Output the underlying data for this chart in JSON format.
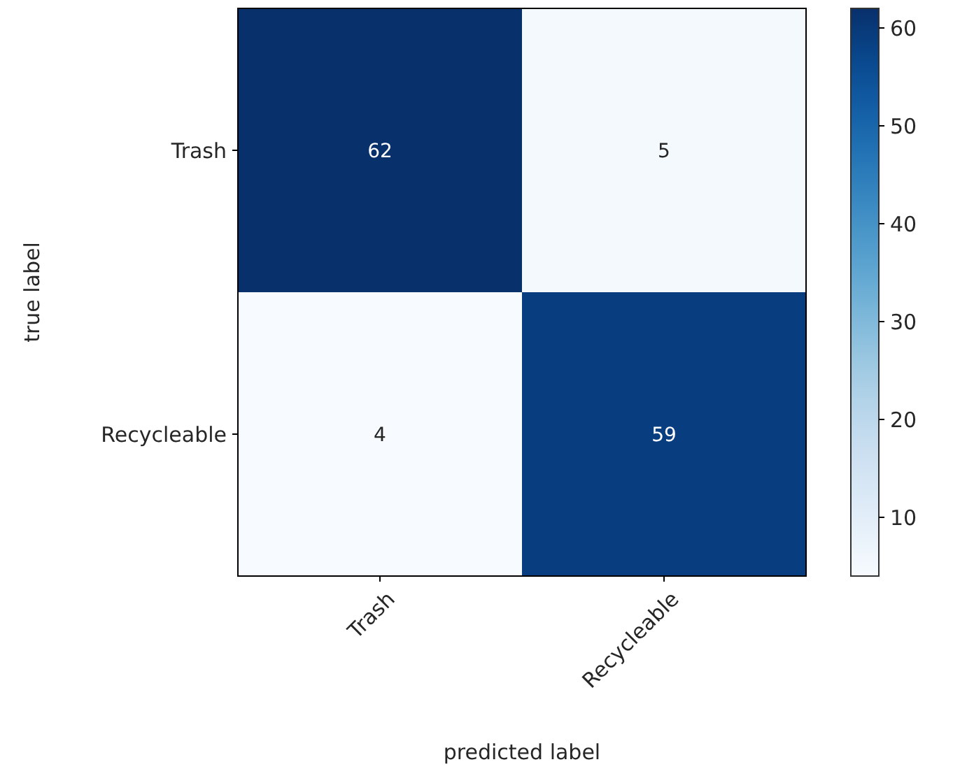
{
  "chart_data": {
    "type": "heatmap",
    "xlabel": "predicted label",
    "ylabel": "true label",
    "categories": [
      "Trash",
      "Recycleable"
    ],
    "y_categories": [
      "Trash",
      "Recycleable"
    ],
    "cells": [
      [
        62,
        5
      ],
      [
        4,
        59
      ]
    ],
    "clim": [
      4,
      62
    ],
    "cticks": [
      10,
      20,
      30,
      40,
      50,
      60
    ],
    "data_labels": true
  }
}
